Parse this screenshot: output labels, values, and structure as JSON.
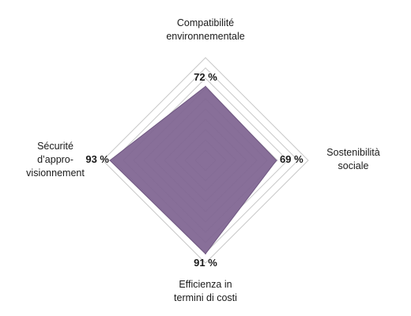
{
  "chart_data": {
    "type": "radar",
    "axes": [
      {
        "key": "compatibility",
        "label_lines": [
          "Compatibilité",
          "environnementale"
        ],
        "value": 72,
        "value_label": "72 %"
      },
      {
        "key": "sustainability",
        "label_lines": [
          "Sostenibilità",
          "sociale"
        ],
        "value": 69,
        "value_label": "69 %"
      },
      {
        "key": "efficiency",
        "label_lines": [
          "Efficienza in",
          "termini di costi"
        ],
        "value": 91,
        "value_label": "91 %"
      },
      {
        "key": "security",
        "label_lines": [
          "Sécurité",
          "d’appro-",
          "visionnement"
        ],
        "value": 93,
        "value_label": "93 %"
      }
    ],
    "range": [
      0,
      100
    ],
    "rings": 10,
    "fill_color": "#7f6491",
    "grid_color": "#c8c8c8"
  }
}
